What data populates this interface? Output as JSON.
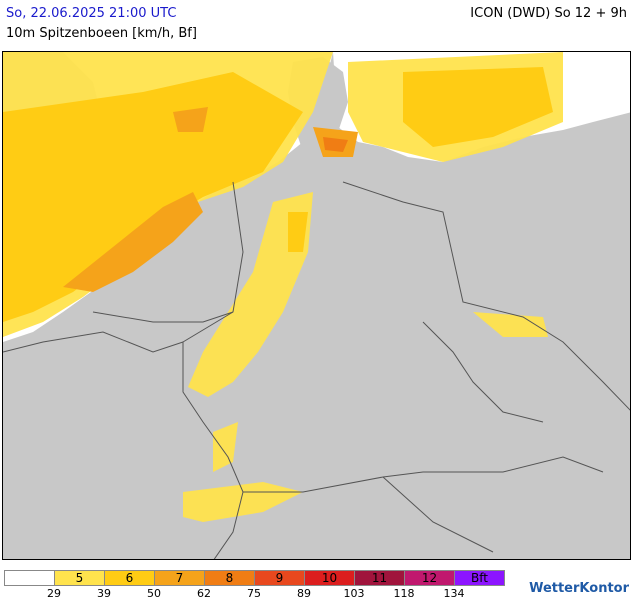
{
  "header": {
    "date": "So, 22.06.2025 21:00 UTC",
    "subtitle": "10m Spitzenboeen [km/h, Bf]",
    "model": "ICON (DWD) So 12 + 9h"
  },
  "legend": {
    "classes": [
      {
        "label": "",
        "color": "#ffffff"
      },
      {
        "label": "5",
        "color": "#ffe34d"
      },
      {
        "label": "6",
        "color": "#ffcc14"
      },
      {
        "label": "7",
        "color": "#f5a31a"
      },
      {
        "label": "8",
        "color": "#f07d14"
      },
      {
        "label": "9",
        "color": "#e8481e"
      },
      {
        "label": "10",
        "color": "#dc1e1e"
      },
      {
        "label": "11",
        "color": "#a0143c"
      },
      {
        "label": "12",
        "color": "#c0186e"
      },
      {
        "label": "Bft",
        "color": "#8c14ff"
      }
    ],
    "ticks": [
      "29",
      "39",
      "50",
      "62",
      "75",
      "89",
      "103",
      "118",
      "134"
    ]
  },
  "logo": "WetterKontor"
}
